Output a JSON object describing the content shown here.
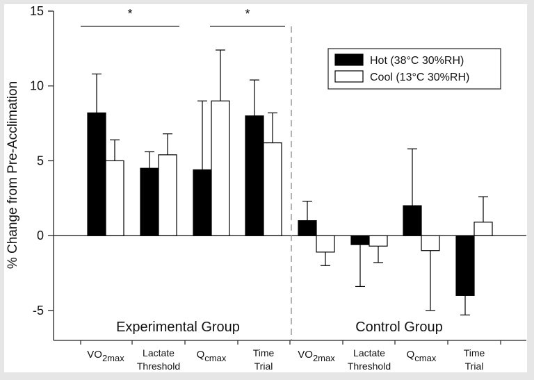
{
  "chart_data": {
    "type": "bar",
    "ylabel": "% Change from Pre-Acclimation",
    "ylim": [
      -7,
      15
    ],
    "yticks": [
      -5,
      0,
      5,
      10,
      15
    ],
    "legend": {
      "placement": "top-right"
    },
    "series": [
      {
        "name": "Hot (38°C 30%RH)",
        "color": "#000000",
        "values": [
          8.2,
          4.5,
          4.4,
          8.0,
          1.0,
          -0.6,
          2.0,
          -4.0
        ],
        "errors": [
          2.6,
          1.1,
          4.6,
          2.4,
          1.3,
          2.8,
          3.8,
          1.3
        ]
      },
      {
        "name": "Cool (13°C 30%RH)",
        "color": "#ffffff",
        "values": [
          5.0,
          5.4,
          9.0,
          6.2,
          -1.1,
          -0.7,
          -1.0,
          0.9
        ],
        "errors": [
          1.4,
          1.4,
          3.4,
          2.0,
          0.9,
          1.1,
          4.0,
          1.7
        ]
      }
    ],
    "categories": [
      {
        "main": "VO",
        "sub": "2max"
      },
      {
        "line1": "Lactate",
        "line2": "Threshold"
      },
      {
        "main": "Q",
        "sub": "cmax"
      },
      {
        "line1": "Time",
        "line2": "Trial"
      },
      {
        "main": "VO",
        "sub": "2max"
      },
      {
        "line1": "Lactate",
        "line2": "Threshold"
      },
      {
        "main": "Q",
        "sub": "cmax"
      },
      {
        "line1": "Time",
        "line2": "Trial"
      }
    ],
    "groups": [
      {
        "label": "Experimental Group"
      },
      {
        "label": "Control Group"
      }
    ],
    "significance": [
      {
        "label": "*",
        "from_category": 0,
        "to_category": 1
      },
      {
        "label": "*",
        "from_category": 2,
        "to_category": 3
      }
    ]
  }
}
